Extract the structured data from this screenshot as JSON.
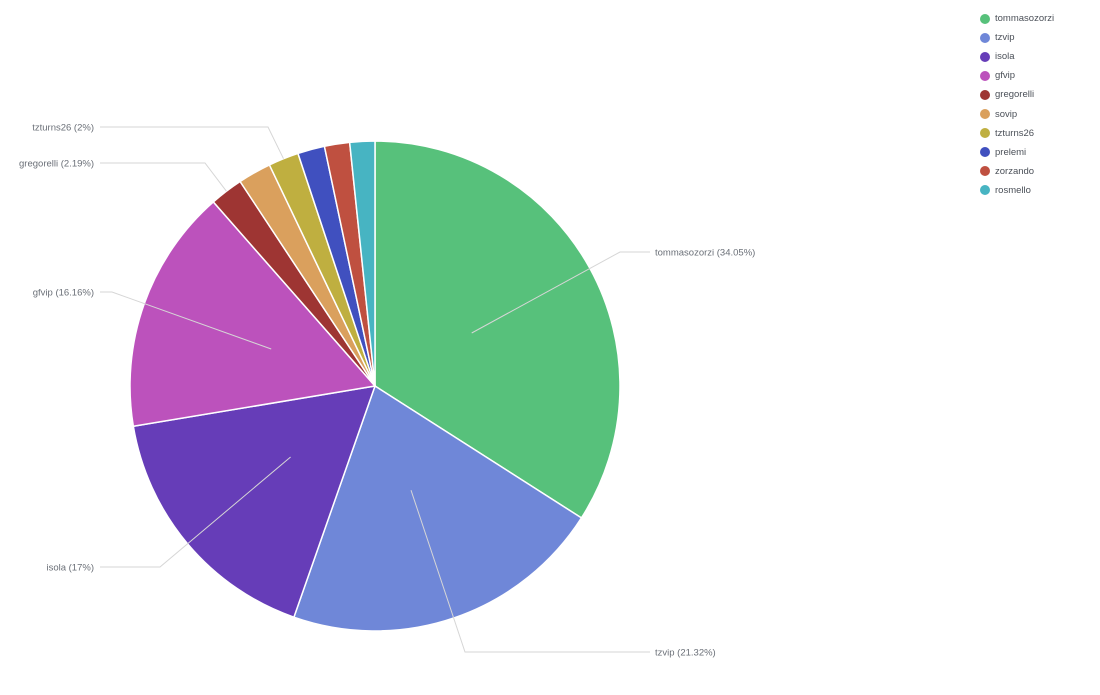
{
  "chart_data": {
    "type": "pie",
    "start_angle": "top, clockwise",
    "legend_position": "top-right",
    "slices": [
      {
        "name": "tommasozorzi",
        "value": 34.05,
        "label": "tommasozorzi (34.05%)",
        "color": "#57c17b",
        "label_side": "right"
      },
      {
        "name": "tzvip",
        "value": 21.32,
        "label": "tzvip (21.32%)",
        "color": "#6f87d8",
        "label_side": "right"
      },
      {
        "name": "isola",
        "value": 17,
        "label": "isola (17%)",
        "color": "#663db8",
        "label_side": "left"
      },
      {
        "name": "gfvip",
        "value": 16.16,
        "label": "gfvip (16.16%)",
        "color": "#bc52bc",
        "label_side": "left"
      },
      {
        "name": "gregorelli",
        "value": 2.19,
        "label": "gregorelli (2.19%)",
        "color": "#9e3533",
        "label_side": "left"
      },
      {
        "name": "sovip",
        "value": 2.19,
        "label": "",
        "color": "#daa05d",
        "label_side": "none"
      },
      {
        "name": "tzturns26",
        "value": 2,
        "label": "tzturns26 (2%)",
        "color": "#bfaf40",
        "label_side": "left"
      },
      {
        "name": "prelemi",
        "value": 1.78,
        "label": "",
        "color": "#4050bf",
        "label_side": "none"
      },
      {
        "name": "zorzando",
        "value": 1.66,
        "label": "",
        "color": "#bf5040",
        "label_side": "none"
      },
      {
        "name": "rosmello",
        "value": 1.65,
        "label": "",
        "color": "#47b4c2",
        "label_side": "none"
      }
    ]
  },
  "legend": {
    "items": [
      {
        "label": "tommasozorzi",
        "color": "#57c17b"
      },
      {
        "label": "tzvip",
        "color": "#6f87d8"
      },
      {
        "label": "isola",
        "color": "#663db8"
      },
      {
        "label": "gfvip",
        "color": "#bc52bc"
      },
      {
        "label": "gregorelli",
        "color": "#9e3533"
      },
      {
        "label": "sovip",
        "color": "#daa05d"
      },
      {
        "label": "tzturns26",
        "color": "#bfaf40"
      },
      {
        "label": "prelemi",
        "color": "#4050bf"
      },
      {
        "label": "zorzando",
        "color": "#bf5040"
      },
      {
        "label": "rosmello",
        "color": "#47b4c2"
      }
    ]
  }
}
